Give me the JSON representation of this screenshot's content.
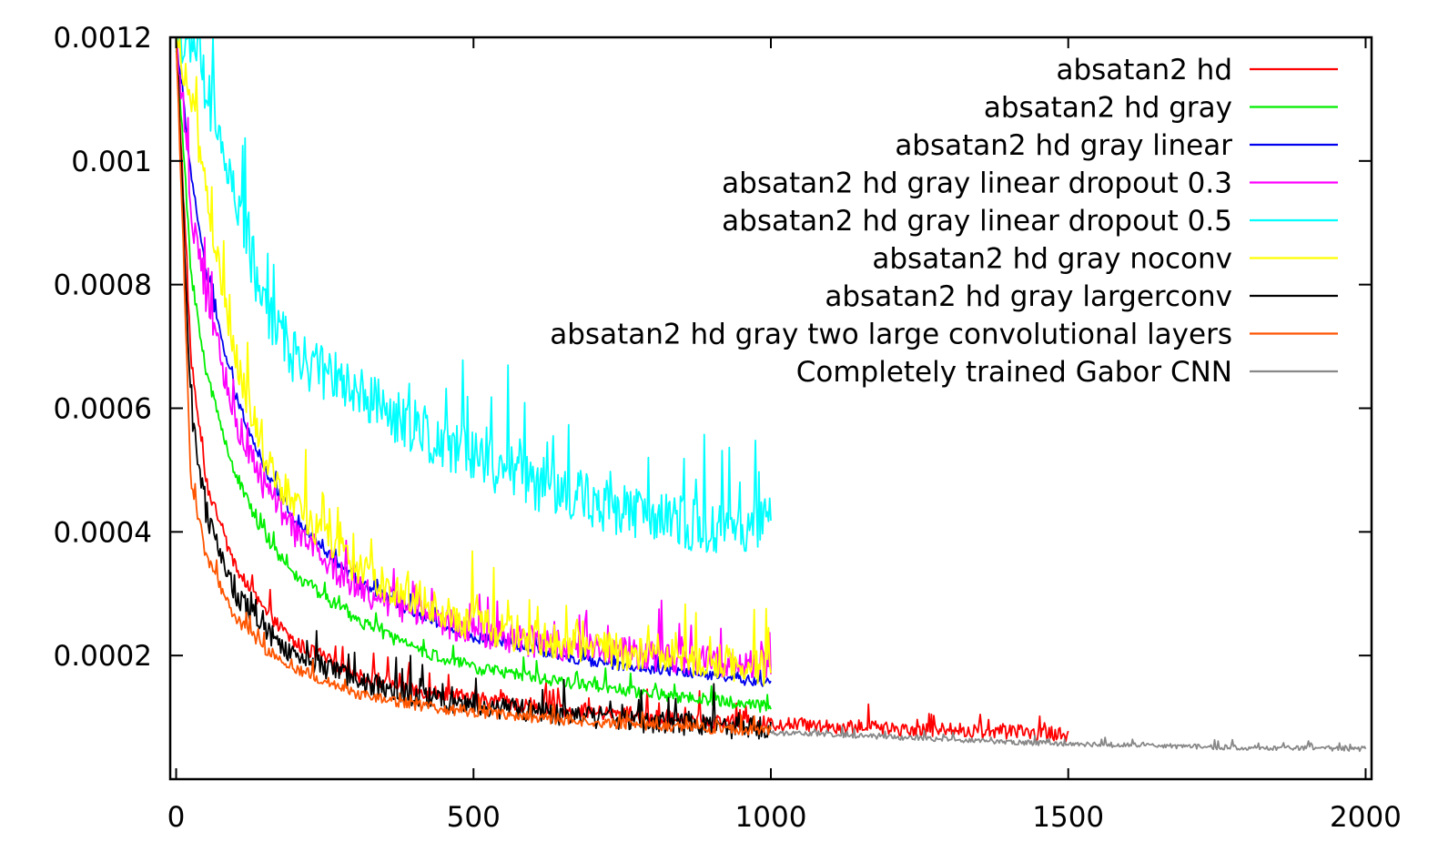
{
  "chart_data": {
    "type": "line",
    "title": "",
    "xlabel": "",
    "ylabel": "",
    "xlim": [
      -10,
      2010
    ],
    "ylim": [
      0,
      0.0012
    ],
    "grid": false,
    "legend_position": "top-right",
    "x_ticks": [
      {
        "value": 0,
        "label": "0"
      },
      {
        "value": 500,
        "label": "500"
      },
      {
        "value": 1000,
        "label": "1000"
      },
      {
        "value": 1500,
        "label": "1500"
      },
      {
        "value": 2000,
        "label": "2000"
      }
    ],
    "y_ticks": [
      {
        "value": 0.0002,
        "label": "0.0002"
      },
      {
        "value": 0.0004,
        "label": "0.0004"
      },
      {
        "value": 0.0006,
        "label": "0.0006"
      },
      {
        "value": 0.0008,
        "label": "0.0008"
      },
      {
        "value": 0.001,
        "label": "0.001"
      },
      {
        "value": 0.0012,
        "label": "0.0012"
      }
    ],
    "series": [
      {
        "name": "absatan2 hd",
        "color": "#ff0000",
        "x": [
          0,
          25,
          50,
          100,
          150,
          200,
          300,
          400,
          500,
          600,
          700,
          800,
          900,
          1000,
          1100,
          1200,
          1300,
          1400,
          1500
        ],
        "y": [
          0.0012,
          0.00068,
          0.00048,
          0.00034,
          0.00027,
          0.00022,
          0.00017,
          0.000145,
          0.00013,
          0.000118,
          0.000108,
          0.0001,
          9.4e-05,
          9e-05,
          8.6e-05,
          8.2e-05,
          7.9e-05,
          7.6e-05,
          7.3e-05
        ],
        "noise": 1.2e-05
      },
      {
        "name": "absatan2 hd gray",
        "color": "#00ee00",
        "x": [
          0,
          25,
          50,
          100,
          150,
          200,
          300,
          400,
          500,
          600,
          700,
          800,
          900,
          1000
        ],
        "y": [
          0.0012,
          0.00082,
          0.00066,
          0.00049,
          0.00039,
          0.00033,
          0.00026,
          0.00021,
          0.00018,
          0.000165,
          0.00015,
          0.000138,
          0.000128,
          0.000116
        ],
        "noise": 1e-05
      },
      {
        "name": "absatan2 hd gray linear",
        "color": "#0000ee",
        "x": [
          0,
          25,
          50,
          100,
          150,
          200,
          300,
          400,
          500,
          600,
          700,
          800,
          900,
          1000
        ],
        "y": [
          0.0012,
          0.00098,
          0.00082,
          0.00062,
          0.0005,
          0.00042,
          0.00032,
          0.00027,
          0.00023,
          0.00021,
          0.00019,
          0.000178,
          0.000168,
          0.000155
        ],
        "noise": 9e-06
      },
      {
        "name": "absatan2 hd gray linear dropout 0.3",
        "color": "#ff00ff",
        "x": [
          0,
          25,
          50,
          100,
          150,
          200,
          300,
          400,
          500,
          600,
          700,
          800,
          900,
          1000
        ],
        "y": [
          0.0012,
          0.00092,
          0.00078,
          0.00058,
          0.00047,
          0.0004,
          0.00031,
          0.00027,
          0.00024,
          0.00022,
          0.00021,
          0.0002,
          0.00019,
          0.000185
        ],
        "noise": 2.5e-05
      },
      {
        "name": "absatan2 hd gray linear dropout 0.5",
        "color": "#00ffff",
        "x": [
          0,
          25,
          50,
          100,
          150,
          200,
          300,
          400,
          500,
          600,
          700,
          800,
          900,
          1000
        ],
        "y": [
          0.0012,
          0.0012,
          0.00112,
          0.00093,
          0.00076,
          0.00068,
          0.00063,
          0.00057,
          0.00052,
          0.00048,
          0.00045,
          0.00042,
          0.00041,
          0.000415
        ],
        "noise": 4.5e-05
      },
      {
        "name": "absatan2 hd gray noconv",
        "color": "#ffff00",
        "x": [
          0,
          25,
          50,
          100,
          150,
          200,
          300,
          400,
          500,
          600,
          700,
          800,
          900,
          1000
        ],
        "y": [
          0.0012,
          0.0011,
          0.00095,
          0.00068,
          0.00052,
          0.00044,
          0.00034,
          0.00029,
          0.00025,
          0.00023,
          0.00021,
          0.0002,
          0.00019,
          0.00018
        ],
        "noise": 3e-05
      },
      {
        "name": "absatan2 hd gray largerconv",
        "color": "#000000",
        "x": [
          0,
          25,
          50,
          100,
          150,
          200,
          300,
          400,
          500,
          600,
          700,
          800,
          900,
          1000
        ],
        "y": [
          0.0012,
          0.0006,
          0.00043,
          0.0003,
          0.00024,
          0.0002,
          0.00016,
          0.000135,
          0.00012,
          0.00011,
          0.0001,
          9.2e-05,
          8.5e-05,
          8e-05
        ],
        "noise": 1.8e-05
      },
      {
        "name": "absatan2 hd gray two large convolutional layers",
        "color": "#ff5500",
        "x": [
          0,
          25,
          50,
          100,
          150,
          200,
          300,
          400,
          500,
          600,
          700,
          800,
          900,
          1000
        ],
        "y": [
          0.0012,
          0.00048,
          0.00036,
          0.00026,
          0.00021,
          0.00018,
          0.00014,
          0.00012,
          0.000108,
          0.0001,
          9.3e-05,
          8.7e-05,
          8.2e-05,
          7.8e-05
        ],
        "noise": 9e-06
      },
      {
        "name": "Completely trained Gabor CNN",
        "color": "#888888",
        "x": [
          1000,
          1100,
          1200,
          1300,
          1400,
          1500,
          1600,
          1700,
          1800,
          1900,
          2000
        ],
        "y": [
          7.5e-05,
          7.2e-05,
          6.8e-05,
          6.4e-05,
          6e-05,
          5.7e-05,
          5.5e-05,
          5.3e-05,
          5.1e-05,
          5e-05,
          4.9e-05
        ],
        "noise": 4e-06
      }
    ]
  }
}
